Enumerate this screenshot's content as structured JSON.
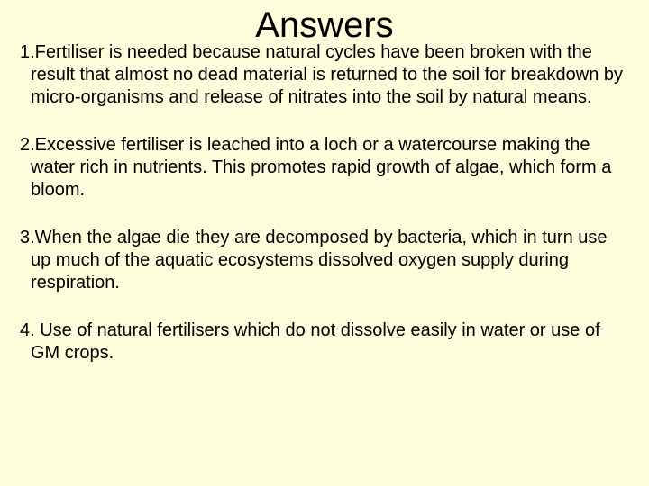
{
  "background_color": "#fefddb",
  "text_color": "#000000",
  "title": {
    "text": "Answers",
    "fontsize": 40,
    "font_family": "Comic Sans MS"
  },
  "body_fontsize": 20,
  "body_font_family": "Comic Sans MS",
  "answers": [
    "1.Fertiliser is needed because natural cycles have been broken with the result that almost no dead material is returned to the soil for breakdown by micro-organisms and release of nitrates into the soil by natural means.",
    "2.Excessive fertiliser is leached into a loch or a watercourse making the water rich in nutrients. This promotes rapid growth of algae, which form a bloom.",
    "3.When the algae die they are decomposed by bacteria, which in turn use up much of the aquatic ecosystems dissolved oxygen supply during respiration.",
    "4. Use of natural fertilisers which do not dissolve easily in water or use of GM crops."
  ]
}
